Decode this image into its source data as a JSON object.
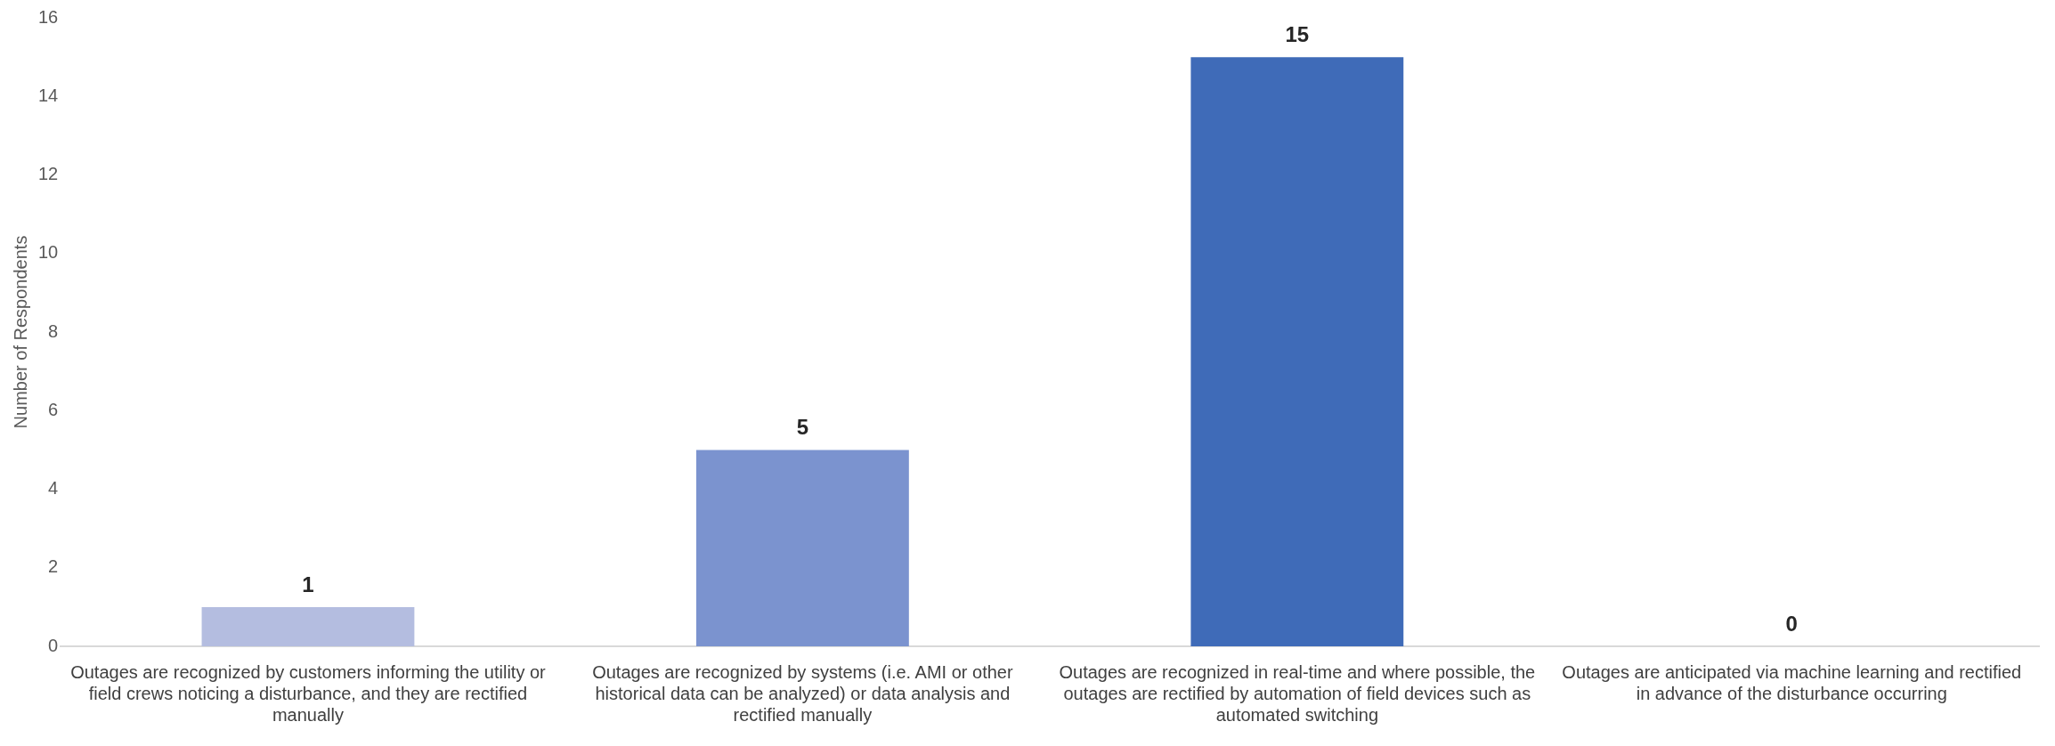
{
  "chart_data": {
    "type": "bar",
    "ylabel": "Number of Respondents",
    "categories": [
      "Outages are recognized by customers informing the utility or field crews noticing a disturbance, and they are rectified manually",
      "Outages are recognized by systems (i.e. AMI or other historical data can be analyzed) or data analysis and rectified manually",
      "Outages are recognized in real-time and where possible, the outages are rectified by automation of field devices such as automated switching",
      "Outages are anticipated via machine learning and rectified in advance of the disturbance occurring"
    ],
    "values": [
      1,
      5,
      15,
      0
    ],
    "colors": [
      "#b4bde0",
      "#7b93cf",
      "#3f6bb8",
      "#2f5597"
    ],
    "ylim": [
      0,
      16
    ],
    "yticks": [
      0,
      2,
      4,
      6,
      8,
      10,
      12,
      14,
      16
    ],
    "grid": false,
    "legend": false,
    "data_labels": true
  }
}
